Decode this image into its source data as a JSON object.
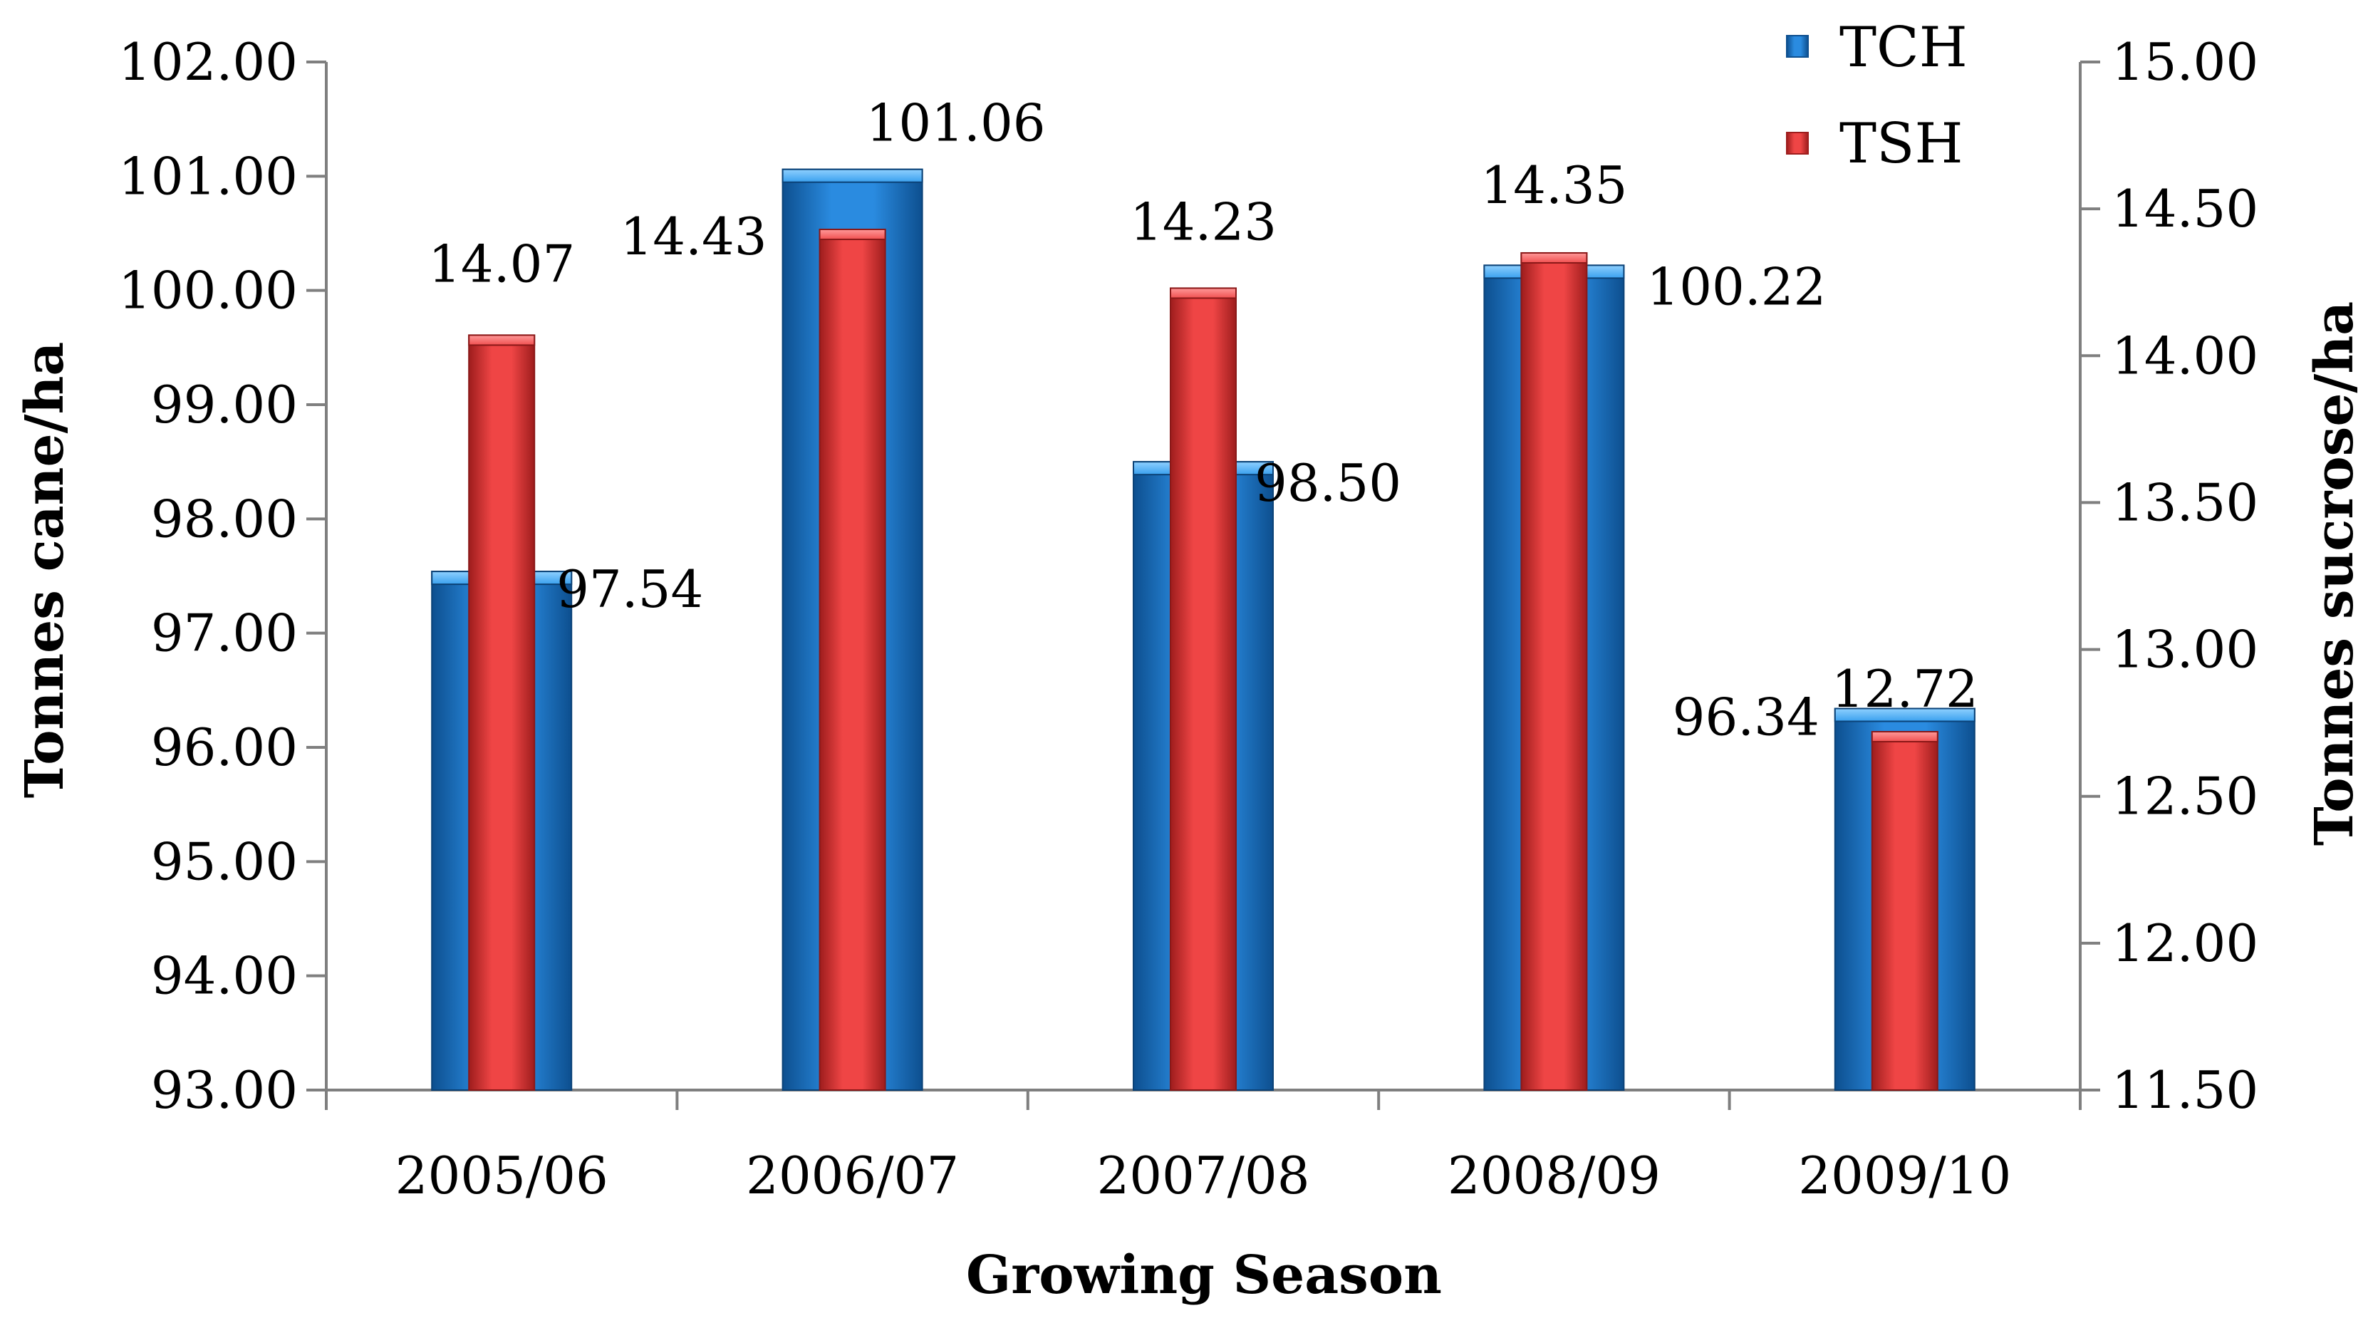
{
  "chart_data": {
    "type": "bar",
    "xlabel": "Growing Season",
    "ylabel": "Tonnes cane/ha",
    "y2label": "Tonnes sucrose/ha",
    "categories": [
      "2005/06",
      "2006/07",
      "2007/08",
      "2008/09",
      "2009/10"
    ],
    "ylim": [
      93,
      102
    ],
    "y2lim": [
      11.5,
      15
    ],
    "yticks": [
      "93.00",
      "94.00",
      "95.00",
      "96.00",
      "97.00",
      "98.00",
      "99.00",
      "100.00",
      "101.00",
      "102.00"
    ],
    "y2ticks": [
      "11.50",
      "12.00",
      "12.50",
      "13.00",
      "13.50",
      "14.00",
      "14.50",
      "15.00"
    ],
    "series": [
      {
        "name": "TCH",
        "axis": "left",
        "color": "#1f7fd0",
        "values": [
          97.54,
          101.06,
          98.5,
          100.22,
          96.34
        ],
        "labels": [
          "97.54",
          "101.06",
          "98.50",
          "100.22",
          "96.34"
        ]
      },
      {
        "name": "TSH",
        "axis": "right",
        "color": "#e43a3a",
        "values": [
          14.07,
          14.43,
          14.23,
          14.35,
          12.72
        ],
        "labels": [
          "14.07",
          "14.43",
          "14.23",
          "14.35",
          "12.72"
        ]
      }
    ],
    "legend": [
      "TCH",
      "TSH"
    ],
    "legend_position": "top-right"
  }
}
